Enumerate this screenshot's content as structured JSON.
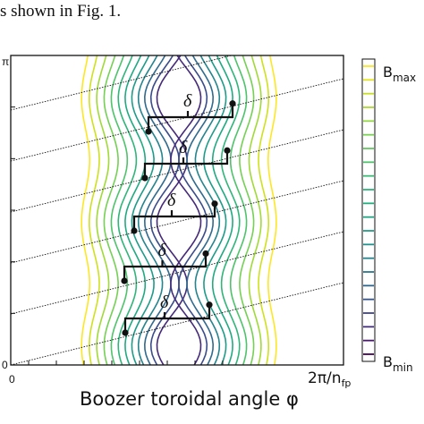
{
  "caption_fragment": "s shown in Fig. 1.",
  "chart_data": {
    "type": "contour",
    "xlabel": "Boozer toroidal angle φ",
    "x_ticks": [
      "0",
      "2π/n"
    ],
    "x_tick_subscript": "fp",
    "y_ticks": [
      "0",
      "π"
    ],
    "colorbar": {
      "max_label": "B",
      "max_label_sub": "max",
      "min_label": "B",
      "min_label_sub": "min",
      "levels": 22,
      "colors": [
        "#440154",
        "#472374",
        "#3f3e8a",
        "#37598c",
        "#2d708e",
        "#25848e",
        "#1f988b",
        "#20a486",
        "#22b07e",
        "#35b779",
        "#4ec36b",
        "#6ccd5a",
        "#8fd744",
        "#b3dc2b",
        "#d8e219",
        "#fde725"
      ]
    },
    "field_lines": {
      "count": 6,
      "style": "dotted"
    },
    "delta_annotations": [
      {
        "label": "δ"
      },
      {
        "label": "δ"
      },
      {
        "label": "δ"
      },
      {
        "label": "δ"
      },
      {
        "label": "δ"
      }
    ]
  }
}
